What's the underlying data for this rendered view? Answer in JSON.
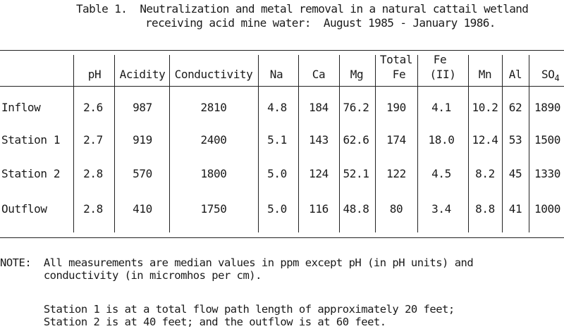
{
  "title": {
    "line1": "Table 1.  Neutralization and metal removal in a natural cattail wetland",
    "line2": "receiving acid mine water:  August 1985 - January 1986."
  },
  "table": {
    "headers": {
      "ph": "pH",
      "acidity": "Acidity",
      "conductivity": "Conductivity",
      "na": "Na",
      "ca": "Ca",
      "mg": "Mg",
      "total_fe_top": "Total",
      "total_fe_bottom": "Fe",
      "fe2_top": "Fe",
      "fe2_bottom": "(II)",
      "mn": "Mn",
      "al": "Al",
      "so4_main": "SO",
      "so4_sub": "4"
    },
    "rows": [
      {
        "label": "Inflow",
        "ph": "2.6",
        "acidity": "987",
        "conductivity": "2810",
        "na": "4.8",
        "ca": "184",
        "mg": "76.2",
        "total_fe": "190",
        "fe2": "4.1",
        "mn": "10.2",
        "al": "62",
        "so4": "1890"
      },
      {
        "label": "Station 1",
        "ph": "2.7",
        "acidity": "919",
        "conductivity": "2400",
        "na": "5.1",
        "ca": "143",
        "mg": "62.6",
        "total_fe": "174",
        "fe2": "18.0",
        "mn": "12.4",
        "al": "53",
        "so4": "1500"
      },
      {
        "label": "Station 2",
        "ph": "2.8",
        "acidity": "570",
        "conductivity": "1800",
        "na": "5.0",
        "ca": "124",
        "mg": "52.1",
        "total_fe": "122",
        "fe2": "4.5",
        "mn": "8.2",
        "al": "45",
        "so4": "1330"
      },
      {
        "label": "Outflow",
        "ph": "2.8",
        "acidity": "410",
        "conductivity": "1750",
        "na": "5.0",
        "ca": "116",
        "mg": "48.8",
        "total_fe": "80",
        "fe2": "3.4",
        "mn": "8.8",
        "al": "41",
        "so4": "1000"
      }
    ]
  },
  "note": {
    "line1": "NOTE:  All measurements are median values in ppm except pH (in pH units) and",
    "line2": "       conductivity (in micromhos per cm).",
    "line3": "       Station 1 is at a total flow path length of approximately 20 feet;",
    "line4": "       Station 2 is at 40 feet; and the outflow is at 60 feet."
  }
}
